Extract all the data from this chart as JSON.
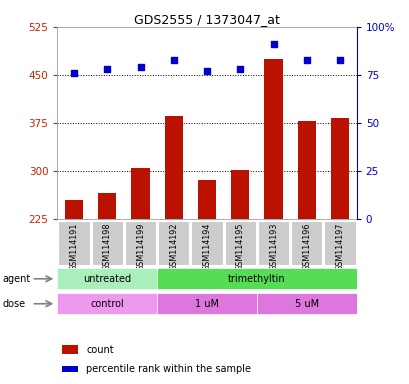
{
  "title": "GDS2555 / 1373047_at",
  "samples": [
    "GSM114191",
    "GSM114198",
    "GSM114199",
    "GSM114192",
    "GSM114194",
    "GSM114195",
    "GSM114193",
    "GSM114196",
    "GSM114197"
  ],
  "count_values": [
    255,
    265,
    305,
    385,
    285,
    302,
    475,
    378,
    383
  ],
  "percentile_values": [
    76,
    78,
    79,
    83,
    77,
    78,
    91,
    83,
    83
  ],
  "ylim_left": [
    225,
    525
  ],
  "ylim_right": [
    0,
    100
  ],
  "yticks_left": [
    225,
    300,
    375,
    450,
    525
  ],
  "yticks_right": [
    0,
    25,
    50,
    75,
    100
  ],
  "ytick_labels_right": [
    "0",
    "25",
    "50",
    "75",
    "100%"
  ],
  "hlines": [
    300,
    375,
    450
  ],
  "bar_color": "#bb1100",
  "dot_color": "#0000cc",
  "left_tick_color": "#cc2200",
  "right_tick_color": "#0000cc",
  "agent_groups": [
    {
      "label": "untreated",
      "start": 0,
      "end": 3,
      "color": "#aaeebb"
    },
    {
      "label": "trimethyltin",
      "start": 3,
      "end": 9,
      "color": "#55dd55"
    }
  ],
  "dose_groups": [
    {
      "label": "control",
      "start": 0,
      "end": 3,
      "color": "#ee99ee"
    },
    {
      "label": "1 uM",
      "start": 3,
      "end": 6,
      "color": "#dd77dd"
    },
    {
      "label": "5 uM",
      "start": 6,
      "end": 9,
      "color": "#dd77dd"
    }
  ],
  "legend_count_label": "count",
  "legend_pct_label": "percentile rank within the sample",
  "agent_label": "agent",
  "dose_label": "dose",
  "bg_color": "#ffffff",
  "xticklabel_bg": "#cccccc"
}
